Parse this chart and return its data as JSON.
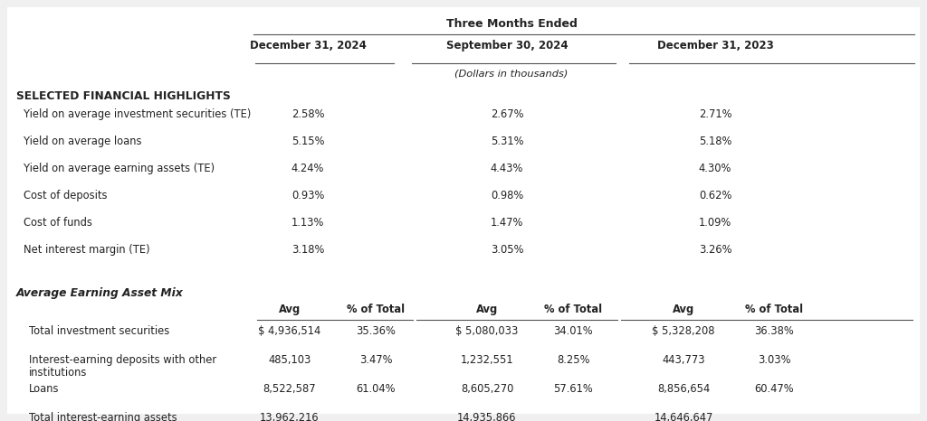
{
  "bg_color": "#f0f0f0",
  "table_bg": "#ffffff",
  "title_three_months": "Three Months Ended",
  "col_headers": [
    "December 31, 2024",
    "September 30, 2024",
    "December 31, 2023"
  ],
  "dollars_note": "(Dollars in thousands)",
  "section1_title": "SELECTED FINANCIAL HIGHLIGHTS",
  "section1_rows": [
    [
      "Yield on average investment securities (TE)",
      "2.58%",
      "2.67%",
      "2.71%"
    ],
    [
      "Yield on average loans",
      "5.15%",
      "5.31%",
      "5.18%"
    ],
    [
      "Yield on average earning assets (TE)",
      "4.24%",
      "4.43%",
      "4.30%"
    ],
    [
      "Cost of deposits",
      "0.93%",
      "0.98%",
      "0.62%"
    ],
    [
      "Cost of funds",
      "1.13%",
      "1.47%",
      "1.09%"
    ],
    [
      "Net interest margin (TE)",
      "3.18%",
      "3.05%",
      "3.26%"
    ]
  ],
  "section2_title": "Average Earning Asset Mix",
  "section2_subheaders": [
    "Avg",
    "% of Total",
    "Avg",
    "% of Total",
    "Avg",
    "% of Total"
  ],
  "section2_rows": [
    [
      "Total investment securities",
      "$ 4,936,514",
      "35.36%",
      "$ 5,080,033",
      "34.01%",
      "$ 5,328,208",
      "36.38%"
    ],
    [
      "Interest-earning deposits with other\ninstitutions",
      "485,103",
      "3.47%",
      "1,232,551",
      "8.25%",
      "443,773",
      "3.03%"
    ],
    [
      "Loans",
      "8,522,587",
      "61.04%",
      "8,605,270",
      "57.61%",
      "8,856,654",
      "60.47%"
    ],
    [
      "Total interest-earning assets",
      "13,962,216",
      "",
      "14,935,866",
      "",
      "14,646,647",
      ""
    ]
  ],
  "font_family": "DejaVu Sans",
  "text_color": "#222222",
  "line_color": "#555555",
  "fontsize": 8.5
}
